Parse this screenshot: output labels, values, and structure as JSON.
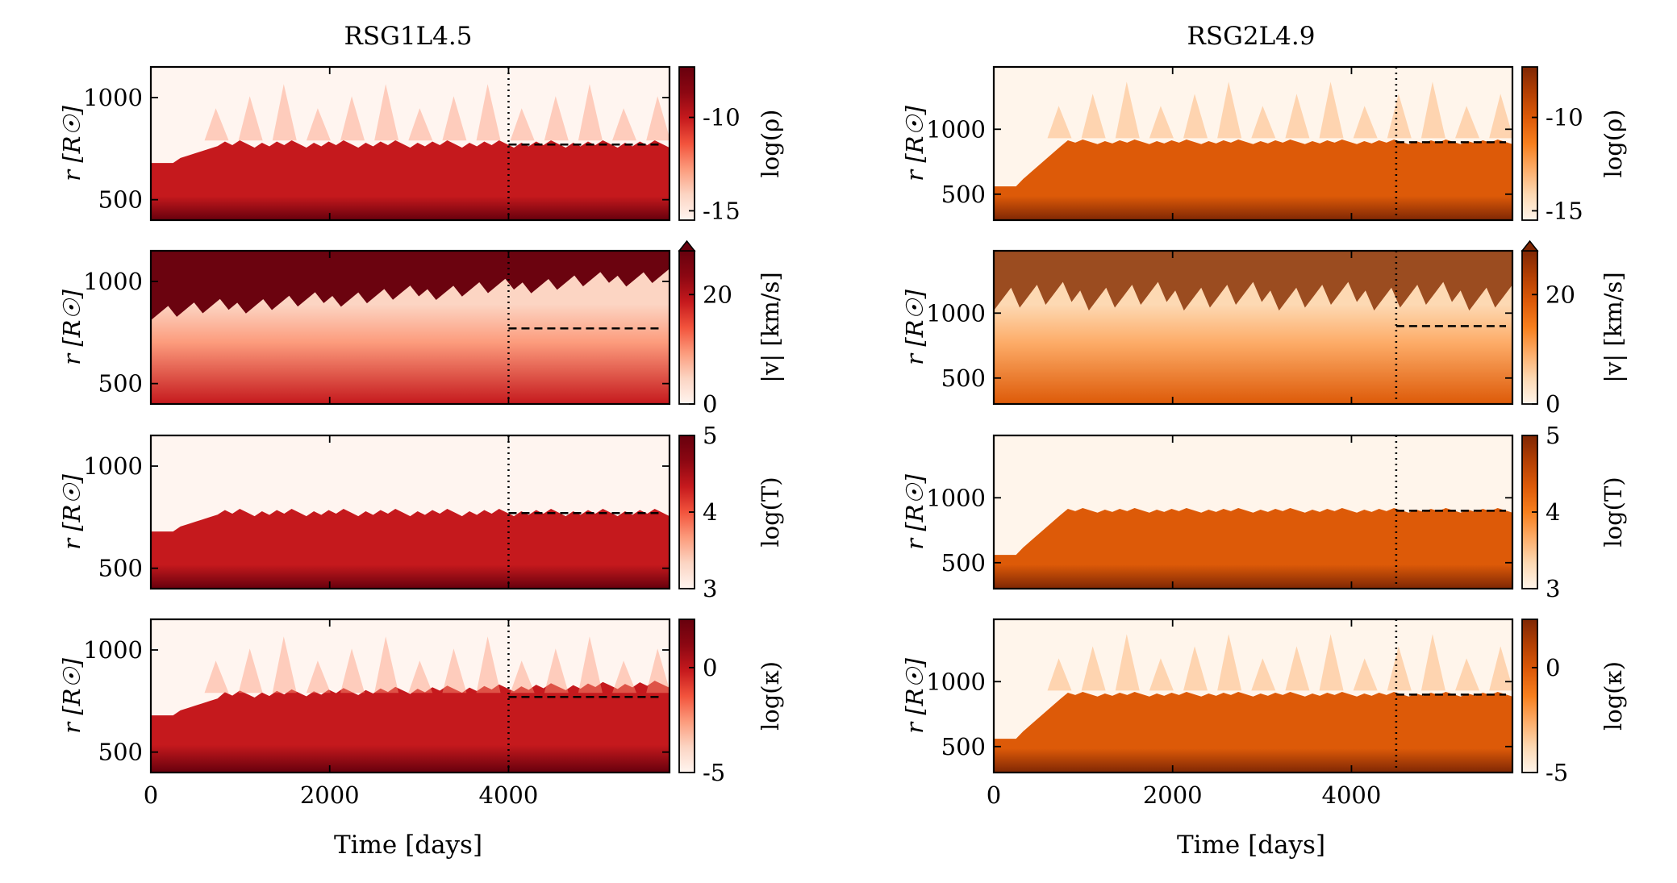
{
  "figure": {
    "columns": [
      {
        "title": "RSG1L4.5",
        "colormap": "reds",
        "marker_time": 4000,
        "photosphere_radius": 770,
        "yticks": [
          500,
          1000
        ],
        "ylim": [
          400,
          1150
        ]
      },
      {
        "title": "RSG2L4.9",
        "colormap": "oranges",
        "marker_time": 4500,
        "photosphere_radius": 900,
        "yticks": [
          500,
          1000
        ],
        "ylim": [
          300,
          1480
        ]
      }
    ],
    "rows": [
      {
        "quantity": "log(ρ)",
        "clim": [
          -15.5,
          -7.3
        ],
        "cticks": [
          -15,
          -10
        ],
        "extend_max": false
      },
      {
        "quantity": "|v| [km/s]",
        "clim": [
          0,
          28
        ],
        "cticks": [
          0,
          20
        ],
        "extend_max": true
      },
      {
        "quantity": "log(T)",
        "clim": [
          3,
          5
        ],
        "cticks": [
          3,
          4,
          5
        ],
        "extend_max": false
      },
      {
        "quantity": "log(κ)",
        "clim": [
          -5,
          2.3
        ],
        "cticks": [
          -5,
          0
        ],
        "extend_max": false
      }
    ],
    "ylabel": "r [R☉]",
    "xlabel": "Time [days]",
    "xticks": [
      0,
      2000,
      4000
    ],
    "xlim": [
      0,
      5800
    ]
  },
  "chart_data": {
    "type": "heatmap",
    "panels_layout": "4 rows x 2 columns",
    "x_axis": {
      "label": "Time [days]",
      "range": [
        0,
        5800
      ],
      "ticks": [
        0,
        2000,
        4000
      ]
    },
    "y_axis": {
      "label": "r [R☉]"
    },
    "annotations": [
      "dotted vertical line at marker_time",
      "dashed horizontal segment from marker_time to end at photosphere_radius"
    ],
    "series": [
      {
        "name": "RSG1L4.5",
        "marker_time": 4000,
        "dashed_radius": 770,
        "ylim": [
          400,
          1150
        ]
      },
      {
        "name": "RSG2L4.9",
        "marker_time": 4500,
        "dashed_radius": 900,
        "ylim": [
          300,
          1480
        ]
      }
    ]
  }
}
